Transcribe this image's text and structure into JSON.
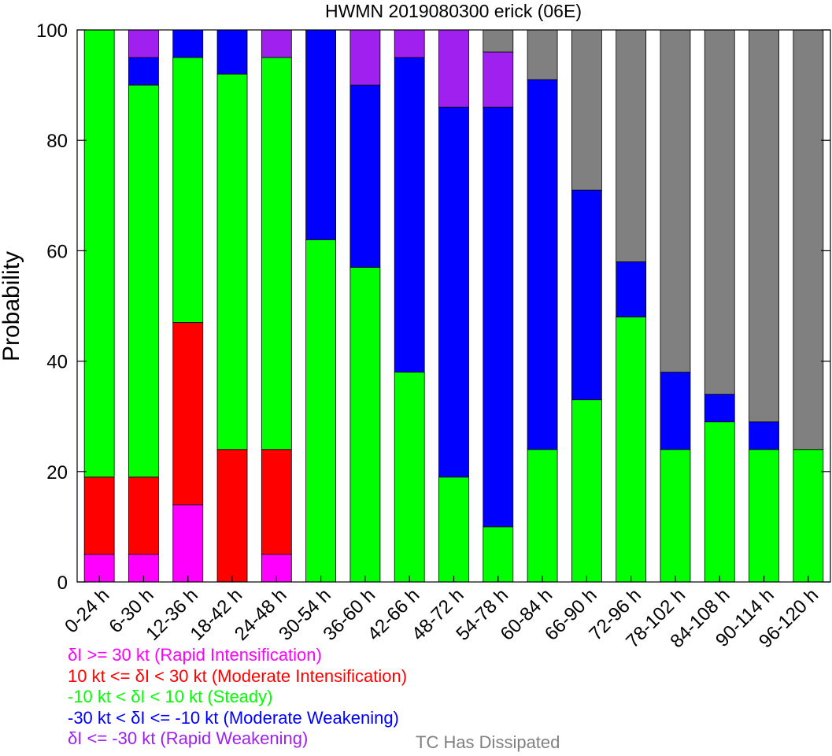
{
  "chart_data": {
    "type": "bar",
    "stacked": true,
    "title": "HWMN 2019080300 erick (06E)",
    "xlabel": "",
    "ylabel": "Probability",
    "ylim": [
      0,
      100
    ],
    "yticks": [
      0,
      20,
      40,
      60,
      80,
      100
    ],
    "grid": false,
    "categories": [
      "0-24 h",
      "6-30 h",
      "12-36 h",
      "18-42 h",
      "24-48 h",
      "30-54 h",
      "36-60 h",
      "42-66 h",
      "48-72 h",
      "54-78 h",
      "60-84 h",
      "66-90 h",
      "72-96 h",
      "78-102 h",
      "84-108 h",
      "90-114 h",
      "96-120 h"
    ],
    "series": [
      {
        "name": "δI >= 30 kt (Rapid Intensification)",
        "color": "#ff00ff",
        "values": [
          5,
          5,
          14,
          0,
          5,
          0,
          0,
          0,
          0,
          0,
          0,
          0,
          0,
          0,
          0,
          0,
          0
        ]
      },
      {
        "name": "10 kt <= δI < 30 kt (Moderate Intensification)",
        "color": "#ff0000",
        "values": [
          14,
          14,
          33,
          24,
          19,
          0,
          0,
          0,
          0,
          0,
          0,
          0,
          0,
          0,
          0,
          0,
          0
        ]
      },
      {
        "name": "-10 kt < δI < 10 kt (Steady)",
        "color": "#00ff00",
        "values": [
          81,
          71,
          48,
          68,
          71,
          62,
          57,
          38,
          19,
          10,
          24,
          33,
          48,
          24,
          29,
          24,
          24
        ]
      },
      {
        "name": "-30 kt < δI <= -10 kt (Moderate Weakening)",
        "color": "#0000ff",
        "values": [
          0,
          5,
          5,
          8,
          0,
          38,
          33,
          57,
          67,
          76,
          67,
          38,
          10,
          14,
          5,
          5,
          0
        ]
      },
      {
        "name": "δI <= -30 kt (Rapid Weakening)",
        "color": "#a020f0",
        "values": [
          0,
          5,
          0,
          0,
          5,
          0,
          10,
          5,
          14,
          10,
          0,
          0,
          0,
          0,
          0,
          0,
          0
        ]
      },
      {
        "name": "TC Has Dissipated",
        "color": "#808080",
        "values": [
          0,
          0,
          0,
          0,
          0,
          0,
          0,
          0,
          0,
          4,
          9,
          29,
          42,
          62,
          66,
          71,
          76
        ]
      }
    ],
    "legend_placement": "bottom-left"
  }
}
